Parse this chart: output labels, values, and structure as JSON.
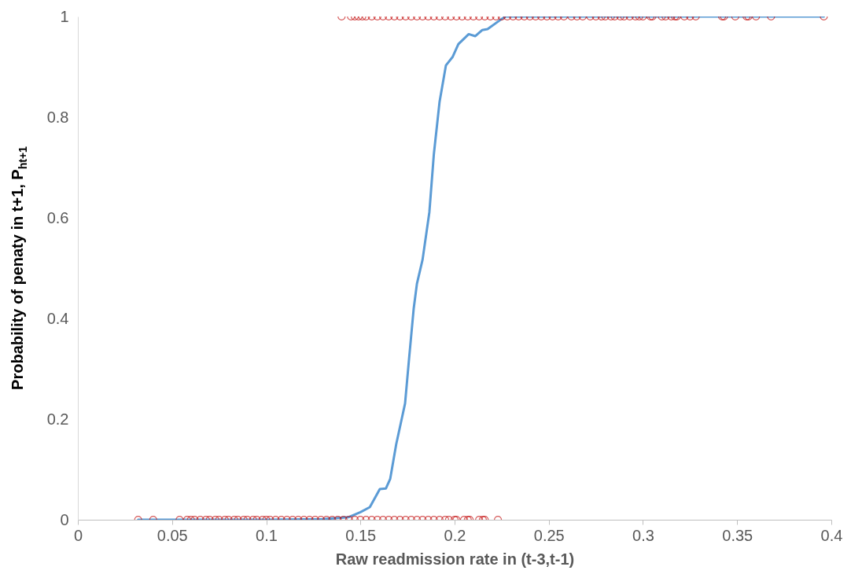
{
  "chart_data": {
    "type": "scatter",
    "xlabel": "Raw readmission rate in (t-3,t-1)",
    "ylabel": "Probability of penaty in t+1, P$_{ht+1}$",
    "xlim": [
      0,
      0.4
    ],
    "ylim": [
      0,
      1
    ],
    "xticks": [
      0,
      0.05,
      0.1,
      0.15,
      0.2,
      0.25,
      0.3,
      0.35,
      0.4
    ],
    "yticks": [
      0,
      0.2,
      0.4,
      0.6,
      0.8,
      1
    ],
    "marker": "circle",
    "series": [
      {
        "type": "line",
        "marker": "none",
        "color": "#5b9bd5",
        "x": [
          0.032,
          0.04,
          0.1,
          0.13,
          0.1436,
          0.15,
          0.155,
          0.1603,
          0.1635,
          0.1658,
          0.169,
          0.1737,
          0.1758,
          0.1783,
          0.18,
          0.183,
          0.1866,
          0.189,
          0.192,
          0.1954,
          0.199,
          0.202,
          0.2075,
          0.211,
          0.2146,
          0.2175,
          0.2238,
          0.227,
          0.3,
          0.396
        ],
        "values": [
          0,
          0,
          0,
          0.001,
          0.005,
          0.015,
          0.025,
          0.061,
          0.062,
          0.081,
          0.15,
          0.231,
          0.319,
          0.42,
          0.469,
          0.517,
          0.611,
          0.727,
          0.83,
          0.903,
          0.92,
          0.945,
          0.965,
          0.961,
          0.973,
          0.975,
          0.992,
          1,
          1,
          1
        ]
      },
      {
        "color": "#c00000",
        "x": [
          0.032,
          0.04,
          0.054,
          0.058,
          0.06,
          0.062,
          0.065,
          0.068,
          0.07,
          0.073,
          0.075,
          0.078,
          0.08,
          0.083,
          0.085,
          0.088,
          0.09,
          0.093,
          0.095,
          0.098,
          0.1,
          0.102,
          0.105,
          0.108,
          0.111,
          0.114,
          0.117,
          0.12,
          0.123,
          0.126,
          0.129,
          0.132,
          0.135,
          0.138,
          0.141,
          0.144,
          0.147,
          0.15,
          0.153,
          0.156,
          0.159,
          0.162,
          0.165,
          0.168,
          0.171,
          0.174,
          0.177,
          0.18,
          0.183,
          0.186,
          0.189,
          0.192,
          0.195,
          0.197,
          0.2,
          0.201,
          0.205,
          0.207,
          0.208,
          0.213,
          0.215,
          0.216,
          0.223,
          0.14,
          0.145,
          0.147,
          0.149,
          0.151,
          0.153,
          0.156,
          0.159,
          0.162,
          0.165,
          0.168,
          0.171,
          0.174,
          0.177,
          0.18,
          0.183,
          0.186,
          0.189,
          0.192,
          0.195,
          0.198,
          0.201,
          0.204,
          0.207,
          0.21,
          0.213,
          0.216,
          0.219,
          0.222,
          0.225,
          0.228,
          0.231,
          0.234,
          0.237,
          0.24,
          0.243,
          0.246,
          0.249,
          0.252,
          0.255,
          0.258,
          0.262,
          0.265,
          0.268,
          0.272,
          0.275,
          0.278,
          0.28,
          0.283,
          0.285,
          0.288,
          0.29,
          0.293,
          0.296,
          0.298,
          0.3,
          0.304,
          0.305,
          0.31,
          0.312,
          0.315,
          0.317,
          0.318,
          0.322,
          0.325,
          0.328,
          0.342,
          0.343,
          0.349,
          0.355,
          0.356,
          0.36,
          0.368,
          0.396
        ],
        "values": [
          0,
          0,
          0,
          0,
          0,
          0,
          0,
          0,
          0,
          0,
          0,
          0,
          0,
          0,
          0,
          0,
          0,
          0,
          0,
          0,
          0,
          0,
          0,
          0,
          0,
          0,
          0,
          0,
          0,
          0,
          0,
          0,
          0,
          0,
          0,
          0,
          0,
          0,
          0,
          0,
          0,
          0,
          0,
          0,
          0,
          0,
          0,
          0,
          0,
          0,
          0,
          0,
          0,
          0,
          0,
          0,
          0,
          0,
          0,
          0,
          0,
          0,
          0,
          1,
          1,
          1,
          1,
          1,
          1,
          1,
          1,
          1,
          1,
          1,
          1,
          1,
          1,
          1,
          1,
          1,
          1,
          1,
          1,
          1,
          1,
          1,
          1,
          1,
          1,
          1,
          1,
          1,
          1,
          1,
          1,
          1,
          1,
          1,
          1,
          1,
          1,
          1,
          1,
          1,
          1,
          1,
          1,
          1,
          1,
          1,
          1,
          1,
          1,
          1,
          1,
          1,
          1,
          1,
          1,
          1,
          1,
          1,
          1,
          1,
          1,
          1,
          1,
          1,
          1,
          1,
          1,
          1,
          1,
          1,
          1,
          1,
          1
        ]
      }
    ]
  }
}
